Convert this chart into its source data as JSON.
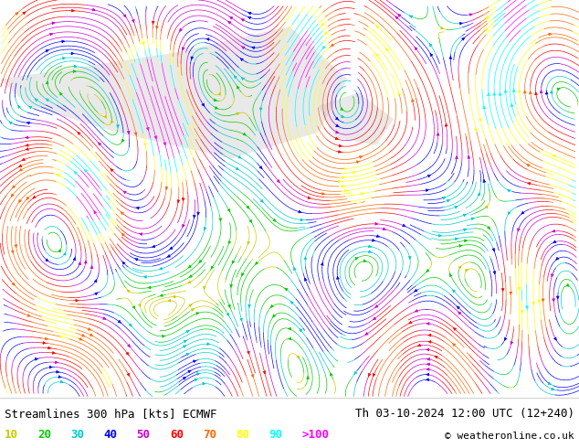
{
  "title_left": "Streamlines 300 hPa [kts] ECMWF",
  "title_right": "Th 03-10-2024 12:00 UTC (12+240)",
  "copyright": "© weatheronline.co.uk",
  "legend_values": [
    "10",
    "20",
    "30",
    "40",
    "50",
    "60",
    "70",
    "80",
    "90",
    ">100"
  ],
  "legend_colors": [
    "#cccc00",
    "#00cc00",
    "#00cccc",
    "#0000ff",
    "#cc00cc",
    "#ff0000",
    "#ff6600",
    "#ffff00",
    "#00ffff",
    "#ff00ff"
  ],
  "background_color": "#f0f8e8",
  "figsize": [
    6.34,
    4.9
  ],
  "dpi": 100,
  "bottom_bar_color": "#ffffff",
  "text_color": "#000000",
  "title_fontsize": 9,
  "legend_fontsize": 9,
  "copyright_fontsize": 8,
  "speed_colors": [
    "#cccc00",
    "#00cc00",
    "#00cccc",
    "#0000ff",
    "#cc00cc",
    "#ff0000",
    "#ff6600",
    "#ffff00",
    "#00ffff",
    "#ff00ff"
  ],
  "speed_thresholds": [
    10,
    20,
    30,
    40,
    50,
    60,
    70,
    80,
    90,
    100
  ]
}
